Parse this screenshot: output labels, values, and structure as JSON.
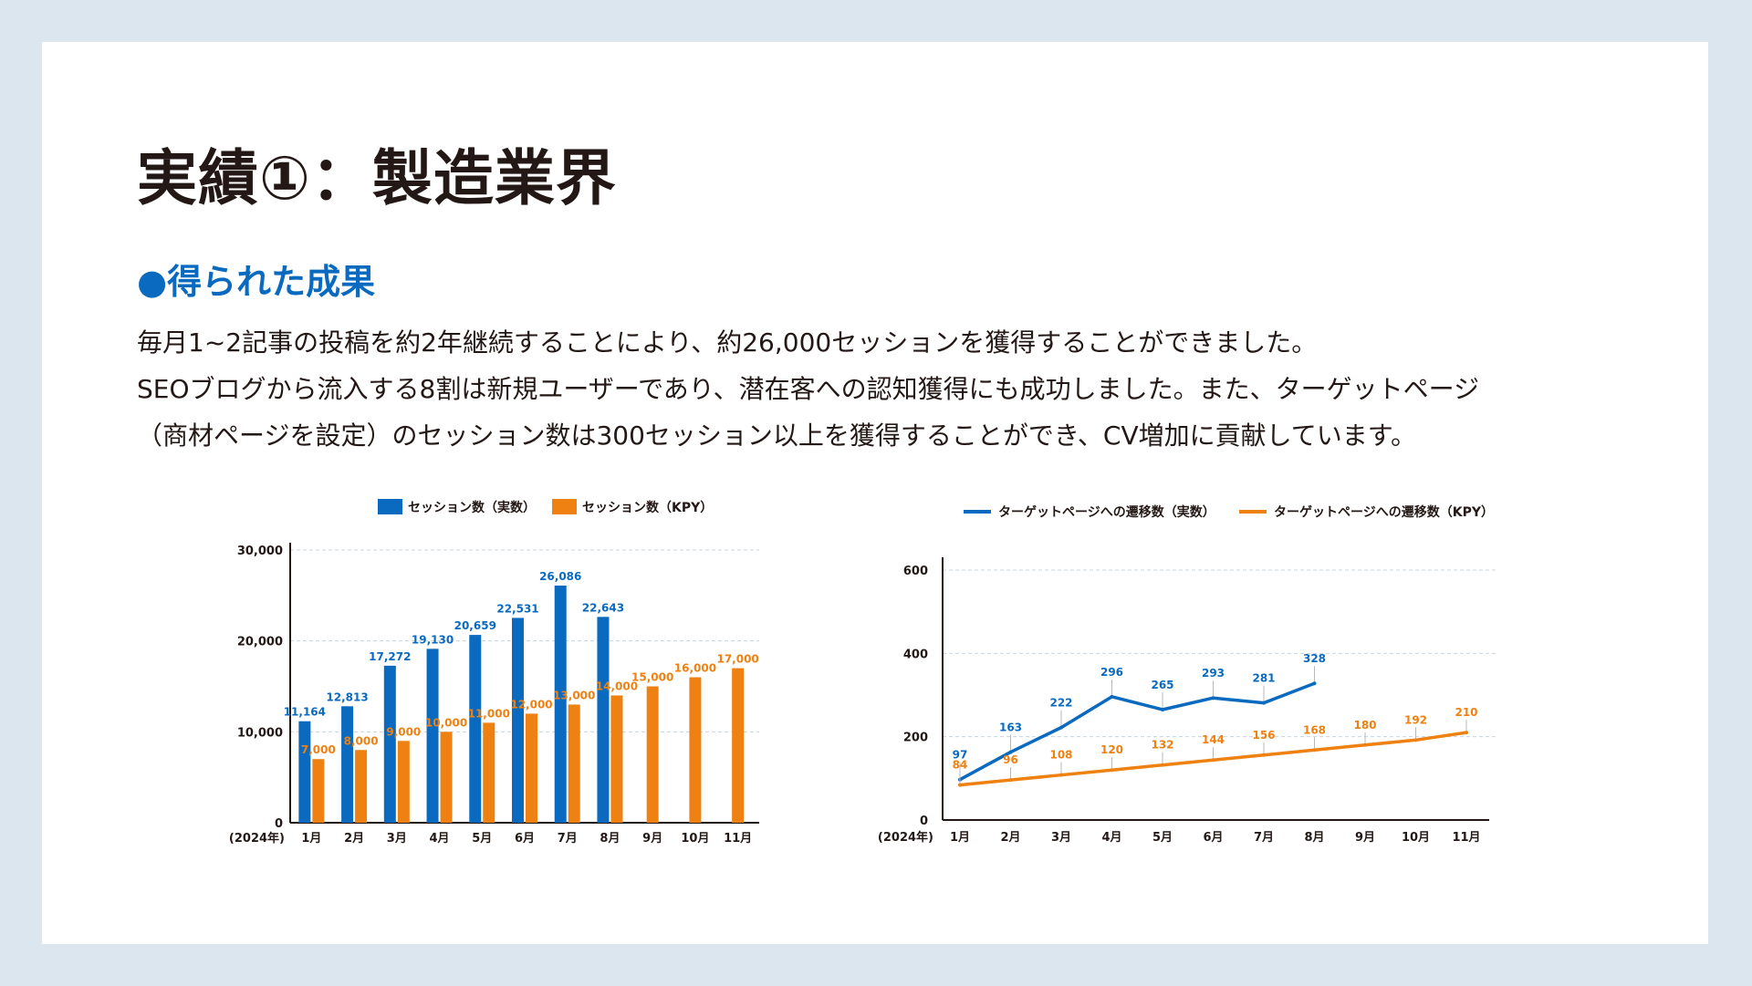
{
  "title": "実績①：製造業界",
  "subtitle": "●得られた成果",
  "body_lines": [
    "毎月1~2記事の投稿を約2年継続することにより、約26,000セッションを獲得することができました。",
    "SEOブログから流入する8割は新規ユーザーであり、潜在客への認知獲得にも成功しました。また、ターゲットページ",
    "（商材ページを設定）のセッション数は300セッション以上を獲得することができ、CV増加に貢献しています。"
  ],
  "colors": {
    "blue": "#0a6abf",
    "orange": "#ee8112",
    "accent": "#0a6abf"
  },
  "chart_data": [
    {
      "type": "bar",
      "year_label": "(2024年)",
      "categories": [
        "1月",
        "2月",
        "3月",
        "4月",
        "5月",
        "6月",
        "7月",
        "8月",
        "9月",
        "10月",
        "11月"
      ],
      "ylim": [
        0,
        30000
      ],
      "yticks": [
        "0",
        "10,000",
        "20,000",
        "30,000"
      ],
      "grid": true,
      "legend_position": "top",
      "series": [
        {
          "name": "セッション数（実数）",
          "color": "#0a6abf",
          "values": [
            11164,
            12813,
            17272,
            19130,
            20659,
            22531,
            26086,
            22643,
            null,
            null,
            null
          ],
          "labels": [
            "11,164",
            "12,813",
            "17,272",
            "19,130",
            "20,659",
            "22,531",
            "26,086",
            "22,643",
            "",
            "",
            ""
          ]
        },
        {
          "name": "セッション数（KPY）",
          "color": "#ee8112",
          "values": [
            7000,
            8000,
            9000,
            10000,
            11000,
            12000,
            13000,
            14000,
            15000,
            16000,
            17000
          ],
          "labels": [
            "7,000",
            "8,000",
            "9,000",
            "10,000",
            "11,000",
            "12,000",
            "13,000",
            "14,000",
            "15,000",
            "16,000",
            "17,000"
          ]
        }
      ]
    },
    {
      "type": "line",
      "year_label": "(2024年)",
      "categories": [
        "1月",
        "2月",
        "3月",
        "4月",
        "5月",
        "6月",
        "7月",
        "8月",
        "9月",
        "10月",
        "11月"
      ],
      "ylim": [
        0,
        600
      ],
      "yticks": [
        "0",
        "200",
        "400",
        "600"
      ],
      "grid": true,
      "legend_position": "top",
      "series": [
        {
          "name": "ターゲットページへの遷移数（実数）",
          "color": "#0a6abf",
          "values": [
            97,
            163,
            222,
            296,
            265,
            293,
            281,
            328,
            null,
            null,
            null
          ]
        },
        {
          "name": "ターゲットページへの遷移数（KPY）",
          "color": "#ee8112",
          "values": [
            84,
            96,
            108,
            120,
            132,
            144,
            156,
            168,
            180,
            192,
            210
          ]
        }
      ]
    }
  ]
}
